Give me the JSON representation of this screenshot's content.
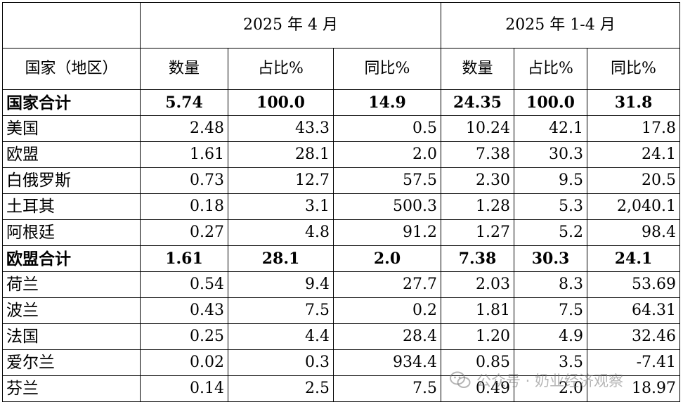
{
  "table": {
    "group_headers": [
      "2025 年 4 月",
      "2025 年 1-4 月"
    ],
    "col_headers": [
      "国家（地区）",
      "数量",
      "占比%",
      "同比%",
      "数量",
      "占比%",
      "同比%"
    ],
    "rows": [
      {
        "name": "国家合计",
        "values": [
          "5.74",
          "100.0",
          "14.9",
          "24.35",
          "100.0",
          "31.8"
        ],
        "bold": true
      },
      {
        "name": "美国",
        "values": [
          "2.48",
          "43.3",
          "0.5",
          "10.24",
          "42.1",
          "17.8"
        ],
        "bold": false
      },
      {
        "name": "欧盟",
        "values": [
          "1.61",
          "28.1",
          "2.0",
          "7.38",
          "30.3",
          "24.1"
        ],
        "bold": false
      },
      {
        "name": "白俄罗斯",
        "values": [
          "0.73",
          "12.7",
          "57.5",
          "2.30",
          "9.5",
          "20.5"
        ],
        "bold": false
      },
      {
        "name": "土耳其",
        "values": [
          "0.18",
          "3.1",
          "500.3",
          "1.28",
          "5.3",
          "2,040.1"
        ],
        "bold": false
      },
      {
        "name": "阿根廷",
        "values": [
          "0.27",
          "4.8",
          "91.2",
          "1.27",
          "5.2",
          "98.4"
        ],
        "bold": false
      },
      {
        "name": "欧盟合计",
        "values": [
          "1.61",
          "28.1",
          "2.0",
          "7.38",
          "30.3",
          "24.1"
        ],
        "bold": true
      },
      {
        "name": "荷兰",
        "values": [
          "0.54",
          "9.4",
          "27.7",
          "2.03",
          "8.3",
          "53.69"
        ],
        "bold": false
      },
      {
        "name": "波兰",
        "values": [
          "0.43",
          "7.5",
          "0.2",
          "1.81",
          "7.5",
          "64.31"
        ],
        "bold": false
      },
      {
        "name": "法国",
        "values": [
          "0.25",
          "4.4",
          "28.4",
          "1.20",
          "4.9",
          "32.46"
        ],
        "bold": false
      },
      {
        "name": "爱尔兰",
        "values": [
          "0.02",
          "0.3",
          "934.4",
          "0.85",
          "3.5",
          "-7.41"
        ],
        "bold": false
      },
      {
        "name": "芬兰",
        "values": [
          "0.14",
          "2.5",
          "7.5",
          "0.49",
          "2.0",
          "18.97"
        ],
        "bold": false
      }
    ]
  },
  "watermark": {
    "text": "公众号 · 奶业经济观察",
    "icon": "wechat-icon"
  }
}
